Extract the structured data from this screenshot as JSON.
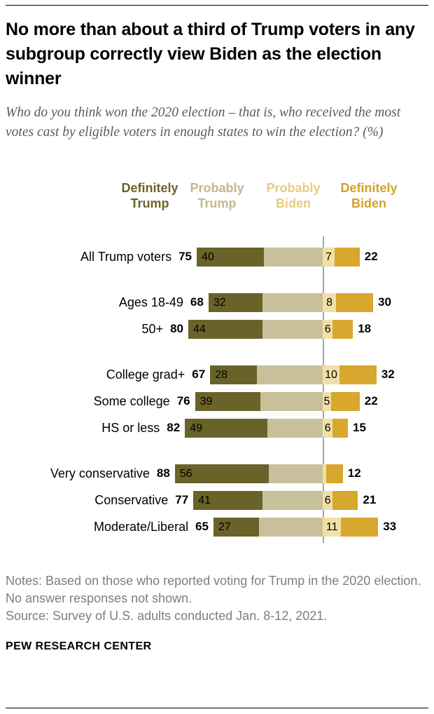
{
  "header": {
    "title": "No more than about a third of Trump voters in any subgroup correctly view Biden as the election winner",
    "subtitle": "Who do you think won the 2020 election – that is, who received the most votes cast by eligible voters in enough states to win the election? (%)"
  },
  "chart_data": {
    "type": "bar",
    "variant": "diverging-stacked-horizontal",
    "unit": "%",
    "legend": [
      {
        "label": "Definitely Trump",
        "fill": "#6a6329",
        "text_color": "#6a6329"
      },
      {
        "label": "Probably Trump",
        "fill": "#c8c09a",
        "text_color": "#c1b88c"
      },
      {
        "label": "Probably Biden",
        "fill": "#f1e0a6",
        "text_color": "#e6cd83"
      },
      {
        "label": "Definitely Biden",
        "fill": "#d7a72e",
        "text_color": "#d2a32b"
      }
    ],
    "axis_divider_color": "#a6a6a6",
    "rows": [
      {
        "label": "All Trump voters",
        "group_start": false,
        "net_trump": 75,
        "definitely_trump": 40,
        "probably_trump": 35,
        "probably_biden": 7,
        "definitely_biden": 15,
        "net_biden": 22,
        "show_probably_biden_label": true
      },
      {
        "label": "Ages 18-49",
        "group_start": true,
        "net_trump": 68,
        "definitely_trump": 32,
        "probably_trump": 36,
        "probably_biden": 8,
        "definitely_biden": 22,
        "net_biden": 30,
        "show_probably_biden_label": true
      },
      {
        "label": "50+",
        "group_start": false,
        "net_trump": 80,
        "definitely_trump": 44,
        "probably_trump": 36,
        "probably_biden": 6,
        "definitely_biden": 12,
        "net_biden": 18,
        "show_probably_biden_label": true
      },
      {
        "label": "College grad+",
        "group_start": true,
        "net_trump": 67,
        "definitely_trump": 28,
        "probably_trump": 39,
        "probably_biden": 10,
        "definitely_biden": 22,
        "net_biden": 32,
        "show_probably_biden_label": true
      },
      {
        "label": "Some college",
        "group_start": false,
        "net_trump": 76,
        "definitely_trump": 39,
        "probably_trump": 37,
        "probably_biden": 5,
        "definitely_biden": 17,
        "net_biden": 22,
        "show_probably_biden_label": true
      },
      {
        "label": "HS or less",
        "group_start": false,
        "net_trump": 82,
        "definitely_trump": 49,
        "probably_trump": 33,
        "probably_biden": 6,
        "definitely_biden": 9,
        "net_biden": 15,
        "show_probably_biden_label": true
      },
      {
        "label": "Very conservative",
        "group_start": true,
        "net_trump": 88,
        "definitely_trump": 56,
        "probably_trump": 32,
        "probably_biden": 2,
        "definitely_biden": 10,
        "net_biden": 12,
        "show_probably_biden_label": false
      },
      {
        "label": "Conservative",
        "group_start": false,
        "net_trump": 77,
        "definitely_trump": 41,
        "probably_trump": 36,
        "probably_biden": 6,
        "definitely_biden": 15,
        "net_biden": 21,
        "show_probably_biden_label": true
      },
      {
        "label": "Moderate/Liberal",
        "group_start": false,
        "net_trump": 65,
        "definitely_trump": 27,
        "probably_trump": 38,
        "probably_biden": 11,
        "definitely_biden": 22,
        "net_biden": 33,
        "show_probably_biden_label": true
      }
    ]
  },
  "footer": {
    "notes": "Notes: Based on those who reported voting for Trump in the 2020 election. No answer responses not shown.",
    "source": "Source: Survey of U.S. adults conducted Jan. 8-12, 2021.",
    "brand": "PEW RESEARCH CENTER"
  }
}
